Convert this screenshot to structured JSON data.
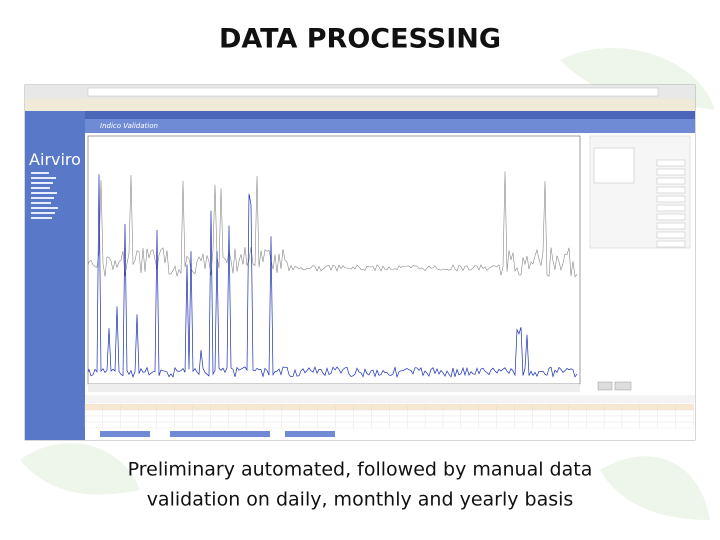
{
  "header": {
    "title": "DATA PROCESSING"
  },
  "screenshot": {
    "app_name": "Airviro",
    "view_title": "Indico Validation"
  },
  "caption": {
    "lines": [
      "Preliminary automated, followed by manual data",
      "validation on daily, monthly and yearly basis"
    ]
  }
}
